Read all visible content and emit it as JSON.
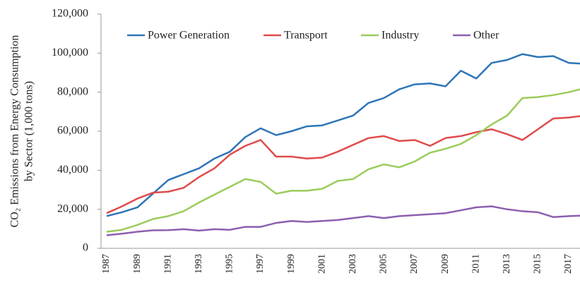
{
  "chart_data": {
    "type": "line",
    "ylabel": [
      "CO₂ Emissions from Energy Consumption",
      "by Sector (1,000 tons)"
    ],
    "categories": [
      "1987",
      null,
      "1989",
      null,
      "1991",
      null,
      "1993",
      null,
      "1995",
      null,
      "1997",
      null,
      "1999",
      null,
      "2001",
      null,
      "2003",
      null,
      "2005",
      null,
      "2007",
      null,
      "2009",
      null,
      "2011",
      null,
      "2013",
      null,
      "2015",
      null,
      "2017",
      null
    ],
    "series": [
      {
        "name": "Power Generation",
        "color": "#2e75b6",
        "values": [
          16500,
          18500,
          21000,
          28000,
          35000,
          38000,
          41000,
          46000,
          49500,
          57000,
          61500,
          58000,
          60000,
          62500,
          63000,
          65500,
          68000,
          74500,
          77000,
          81500,
          84000,
          84500,
          83000,
          91000,
          87000,
          95000,
          96500,
          99500,
          98000,
          98500,
          95000,
          94500
        ]
      },
      {
        "name": "Transport",
        "color": "#e04b4b",
        "values": [
          18000,
          21500,
          25500,
          28500,
          29000,
          31000,
          36500,
          41000,
          48000,
          52500,
          55500,
          47000,
          47000,
          46000,
          46500,
          49500,
          53000,
          56500,
          57500,
          55000,
          55500,
          52500,
          56500,
          57500,
          59500,
          61000,
          58500,
          55500,
          61000,
          66500,
          67000,
          68000
        ]
      },
      {
        "name": "Industry",
        "color": "#9bcb5b",
        "values": [
          8500,
          9500,
          12000,
          15000,
          16500,
          19000,
          23500,
          27500,
          31500,
          35500,
          34000,
          28000,
          29500,
          29500,
          30500,
          34500,
          35500,
          40500,
          43000,
          41500,
          44500,
          49000,
          51000,
          53500,
          58000,
          63500,
          68000,
          77000,
          77500,
          78500,
          80000,
          82000
        ]
      },
      {
        "name": "Other",
        "color": "#8c5fb0",
        "values": [
          6700,
          7500,
          8500,
          9200,
          9300,
          9800,
          9100,
          9800,
          9500,
          11000,
          11000,
          13000,
          14000,
          13500,
          14000,
          14500,
          15500,
          16500,
          15500,
          16500,
          17000,
          17500,
          18000,
          19500,
          21000,
          21500,
          20000,
          19000,
          18500,
          16000,
          16500,
          16800
        ]
      }
    ],
    "ylim": [
      0,
      120000
    ],
    "yticks": [
      0,
      {
        "value": 20000,
        "label": "20,000"
      },
      {
        "value": 40000,
        "label": "40,000"
      },
      {
        "value": 60000,
        "label": "60,000"
      },
      {
        "value": 80000,
        "label": "80,000"
      },
      {
        "value": 100000,
        "label": "100,000"
      },
      {
        "value": 120000,
        "label": "120,000"
      }
    ],
    "legend": "top",
    "grid": false
  }
}
